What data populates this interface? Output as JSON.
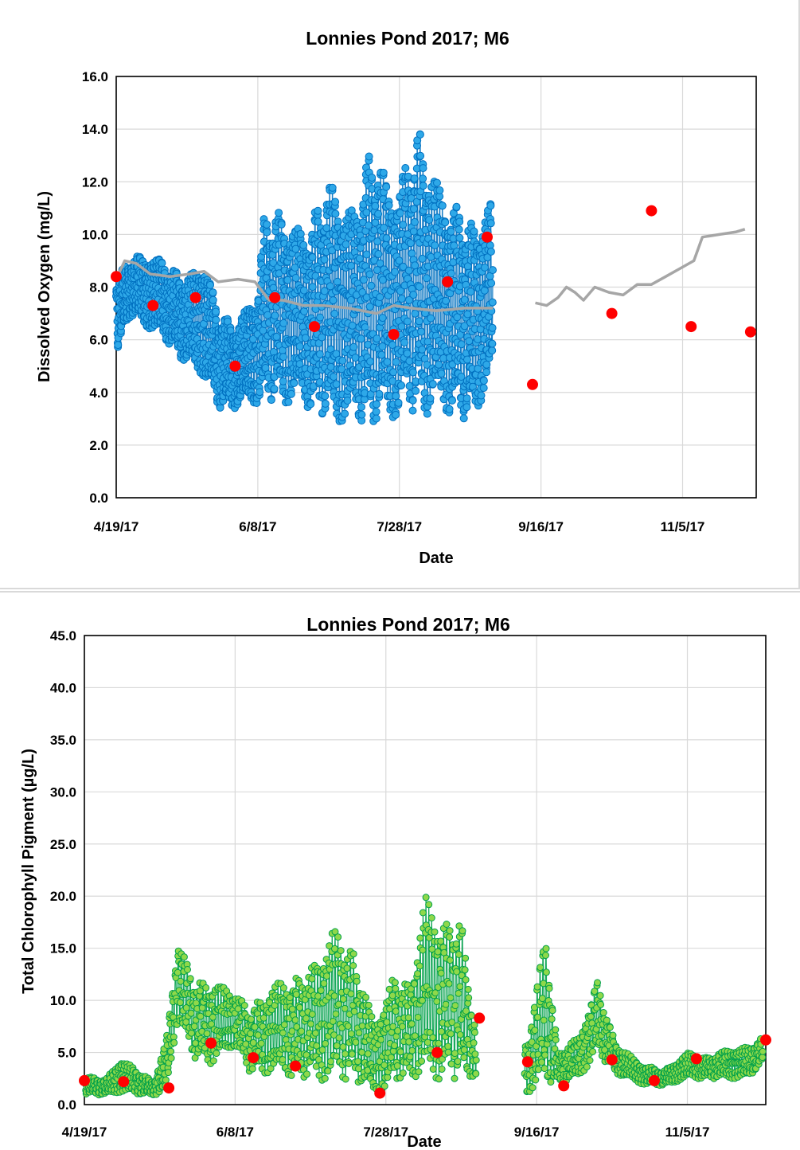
{
  "chart_data": [
    {
      "type": "scatter",
      "title": "Lonnies Pond 2017; M6",
      "xlabel": "Date",
      "ylabel": "Dissolved Oxygen (mg/L)",
      "xlim": [
        "2017-04-19",
        "2017-12-01"
      ],
      "ylim": [
        0,
        16
      ],
      "x_ticks": [
        "4/19/17",
        "6/8/17",
        "7/28/17",
        "9/16/17",
        "11/5/17"
      ],
      "y_ticks": [
        "0.0",
        "2.0",
        "4.0",
        "6.0",
        "8.0",
        "10.0",
        "12.0",
        "14.0",
        "16.0"
      ],
      "grid": true,
      "series": [
        {
          "color": "#0070c0",
          "fill": "#2ea8e8",
          "style": "continuous-sonde",
          "date_range": [
            "2017-04-19",
            "2017-08-30"
          ],
          "envelope": [
            {
              "x": "2017-04-19",
              "min": 5.5,
              "max": 8.4
            },
            {
              "x": "2017-04-24",
              "min": 6.9,
              "max": 9.1
            },
            {
              "x": "2017-05-01",
              "min": 6.4,
              "max": 9.3
            },
            {
              "x": "2017-05-08",
              "min": 5.8,
              "max": 8.8
            },
            {
              "x": "2017-05-14",
              "min": 5.0,
              "max": 8.3
            },
            {
              "x": "2017-05-20",
              "min": 4.6,
              "max": 9.2
            },
            {
              "x": "2017-05-25",
              "min": 3.4,
              "max": 7.0
            },
            {
              "x": "2017-06-01",
              "min": 3.4,
              "max": 6.6
            },
            {
              "x": "2017-06-08",
              "min": 3.6,
              "max": 8.0
            },
            {
              "x": "2017-06-10",
              "min": 3.7,
              "max": 10.6
            },
            {
              "x": "2017-06-17",
              "min": 3.6,
              "max": 10.9
            },
            {
              "x": "2017-06-24",
              "min": 3.5,
              "max": 10.0
            },
            {
              "x": "2017-07-01",
              "min": 3.1,
              "max": 11.5
            },
            {
              "x": "2017-07-05",
              "min": 2.8,
              "max": 12.1
            },
            {
              "x": "2017-07-12",
              "min": 2.9,
              "max": 10.8
            },
            {
              "x": "2017-07-18",
              "min": 2.8,
              "max": 13.5
            },
            {
              "x": "2017-07-24",
              "min": 2.8,
              "max": 12.0
            },
            {
              "x": "2017-07-30",
              "min": 3.4,
              "max": 12.5
            },
            {
              "x": "2017-08-04",
              "min": 3.2,
              "max": 14.1
            },
            {
              "x": "2017-08-10",
              "min": 3.1,
              "max": 12.0
            },
            {
              "x": "2017-08-16",
              "min": 3.2,
              "max": 11.3
            },
            {
              "x": "2017-08-22",
              "min": 2.9,
              "max": 10.4
            },
            {
              "x": "2017-08-30",
              "min": 4.4,
              "max": 11.3
            }
          ]
        },
        {
          "color": "#a6a6a6",
          "style": "line",
          "segments": [
            [
              {
                "x": "2017-04-19",
                "y": 8.3
              },
              {
                "x": "2017-04-22",
                "y": 9.0
              },
              {
                "x": "2017-04-26",
                "y": 8.9
              },
              {
                "x": "2017-05-01",
                "y": 8.5
              },
              {
                "x": "2017-05-08",
                "y": 8.4
              },
              {
                "x": "2017-05-15",
                "y": 8.5
              },
              {
                "x": "2017-05-20",
                "y": 8.6
              },
              {
                "x": "2017-05-25",
                "y": 8.2
              },
              {
                "x": "2017-06-01",
                "y": 8.3
              },
              {
                "x": "2017-06-07",
                "y": 8.2
              },
              {
                "x": "2017-06-12",
                "y": 7.5
              },
              {
                "x": "2017-06-17",
                "y": 7.5
              },
              {
                "x": "2017-06-24",
                "y": 7.3
              },
              {
                "x": "2017-07-01",
                "y": 7.3
              },
              {
                "x": "2017-07-10",
                "y": 7.2
              },
              {
                "x": "2017-07-20",
                "y": 7.0
              },
              {
                "x": "2017-07-26",
                "y": 7.3
              },
              {
                "x": "2017-08-01",
                "y": 7.2
              },
              {
                "x": "2017-08-10",
                "y": 7.1
              },
              {
                "x": "2017-08-20",
                "y": 7.2
              },
              {
                "x": "2017-08-30",
                "y": 7.2
              }
            ],
            [
              {
                "x": "2017-09-14",
                "y": 7.4
              },
              {
                "x": "2017-09-18",
                "y": 7.3
              },
              {
                "x": "2017-09-22",
                "y": 7.6
              },
              {
                "x": "2017-09-25",
                "y": 8.0
              },
              {
                "x": "2017-09-28",
                "y": 7.8
              },
              {
                "x": "2017-10-01",
                "y": 7.5
              },
              {
                "x": "2017-10-05",
                "y": 8.0
              },
              {
                "x": "2017-10-10",
                "y": 7.8
              },
              {
                "x": "2017-10-15",
                "y": 7.7
              },
              {
                "x": "2017-10-20",
                "y": 8.1
              },
              {
                "x": "2017-10-25",
                "y": 8.1
              },
              {
                "x": "2017-10-30",
                "y": 8.4
              },
              {
                "x": "2017-11-04",
                "y": 8.7
              },
              {
                "x": "2017-11-09",
                "y": 9.0
              },
              {
                "x": "2017-11-12",
                "y": 9.9
              },
              {
                "x": "2017-11-18",
                "y": 10.0
              },
              {
                "x": "2017-11-24",
                "y": 10.1
              },
              {
                "x": "2017-11-27",
                "y": 10.2
              }
            ]
          ]
        },
        {
          "color": "#ff0000",
          "style": "markers",
          "points": [
            {
              "x": "2017-04-19",
              "y": 8.4
            },
            {
              "x": "2017-05-02",
              "y": 7.3
            },
            {
              "x": "2017-05-17",
              "y": 7.6
            },
            {
              "x": "2017-05-31",
              "y": 5.0
            },
            {
              "x": "2017-06-14",
              "y": 7.6
            },
            {
              "x": "2017-06-28",
              "y": 6.5
            },
            {
              "x": "2017-07-26",
              "y": 6.2
            },
            {
              "x": "2017-08-14",
              "y": 8.2
            },
            {
              "x": "2017-08-28",
              "y": 9.9
            },
            {
              "x": "2017-09-13",
              "y": 4.3
            },
            {
              "x": "2017-10-11",
              "y": 7.0
            },
            {
              "x": "2017-10-25",
              "y": 10.9
            },
            {
              "x": "2017-11-08",
              "y": 6.5
            },
            {
              "x": "2017-11-29",
              "y": 6.3
            }
          ]
        }
      ]
    },
    {
      "type": "scatter",
      "title": "Lonnies Pond 2017; M6",
      "xlabel": "Date",
      "ylabel": "Total Chlorophyll Pigment (µg/L)",
      "xlim": [
        "2017-04-19",
        "2017-12-01"
      ],
      "ylim": [
        0,
        45
      ],
      "x_ticks": [
        "4/19/17",
        "6/8/17",
        "7/28/17",
        "9/16/17",
        "11/5/17"
      ],
      "y_ticks": [
        "0.0",
        "5.0",
        "10.0",
        "15.0",
        "20.0",
        "25.0",
        "30.0",
        "35.0",
        "40.0",
        "45.0"
      ],
      "grid": true,
      "series": [
        {
          "color": "#00a04a",
          "fill": "#8fd84a",
          "style": "continuous-sonde",
          "date_range": [
            "2017-04-19",
            "2017-11-30"
          ],
          "envelope": [
            {
              "x": "2017-04-19",
              "min": 1.0,
              "max": 2.8
            },
            {
              "x": "2017-04-26",
              "min": 0.9,
              "max": 2.4
            },
            {
              "x": "2017-05-01",
              "min": 1.2,
              "max": 4.5
            },
            {
              "x": "2017-05-06",
              "min": 1.0,
              "max": 3.4
            },
            {
              "x": "2017-05-12",
              "min": 0.9,
              "max": 2.2
            },
            {
              "x": "2017-05-16",
              "min": 1.0,
              "max": 6.0
            },
            {
              "x": "2017-05-20",
              "min": 8.0,
              "max": 16.2
            },
            {
              "x": "2017-05-25",
              "min": 4.5,
              "max": 12.0
            },
            {
              "x": "2017-06-01",
              "min": 3.8,
              "max": 11.8
            },
            {
              "x": "2017-06-08",
              "min": 5.5,
              "max": 11.0
            },
            {
              "x": "2017-06-13",
              "min": 3.0,
              "max": 9.0
            },
            {
              "x": "2017-06-20",
              "min": 3.0,
              "max": 11.5
            },
            {
              "x": "2017-06-27",
              "min": 2.5,
              "max": 12.0
            },
            {
              "x": "2017-07-03",
              "min": 2.5,
              "max": 13.0
            },
            {
              "x": "2017-07-10",
              "min": 2.0,
              "max": 17.0
            },
            {
              "x": "2017-07-17",
              "min": 2.5,
              "max": 15.0
            },
            {
              "x": "2017-07-24",
              "min": 0.8,
              "max": 8.0
            },
            {
              "x": "2017-07-31",
              "min": 2.0,
              "max": 12.5
            },
            {
              "x": "2017-08-05",
              "min": 2.5,
              "max": 11.5
            },
            {
              "x": "2017-08-10",
              "min": 2.0,
              "max": 20.0
            },
            {
              "x": "2017-08-17",
              "min": 2.5,
              "max": 17.5
            },
            {
              "x": "2017-08-22",
              "min": 2.5,
              "max": 18.0
            },
            {
              "x": "2017-08-26",
              "min": 2.5,
              "max": 8.5
            },
            {
              "x": "2017-09-13",
              "min": 1.0,
              "max": 6.3
            },
            {
              "x": "2017-09-19",
              "min": 2.0,
              "max": 16.9
            },
            {
              "x": "2017-09-23",
              "min": 2.0,
              "max": 5.0
            },
            {
              "x": "2017-09-30",
              "min": 2.5,
              "max": 6.5
            },
            {
              "x": "2017-10-06",
              "min": 5.0,
              "max": 12.0
            },
            {
              "x": "2017-10-12",
              "min": 3.0,
              "max": 6.0
            },
            {
              "x": "2017-10-20",
              "min": 2.0,
              "max": 4.0
            },
            {
              "x": "2017-10-28",
              "min": 1.8,
              "max": 3.2
            },
            {
              "x": "2017-11-05",
              "min": 2.5,
              "max": 5.0
            },
            {
              "x": "2017-11-12",
              "min": 2.5,
              "max": 4.5
            },
            {
              "x": "2017-11-19",
              "min": 2.5,
              "max": 5.5
            },
            {
              "x": "2017-11-25",
              "min": 2.5,
              "max": 5.5
            },
            {
              "x": "2017-11-30",
              "min": 4.0,
              "max": 6.5
            }
          ]
        },
        {
          "color": "#ff0000",
          "style": "markers",
          "points": [
            {
              "x": "2017-04-19",
              "y": 2.3
            },
            {
              "x": "2017-05-02",
              "y": 2.2
            },
            {
              "x": "2017-05-17",
              "y": 1.6
            },
            {
              "x": "2017-05-31",
              "y": 5.9
            },
            {
              "x": "2017-06-14",
              "y": 4.5
            },
            {
              "x": "2017-06-28",
              "y": 3.7
            },
            {
              "x": "2017-07-26",
              "y": 1.1
            },
            {
              "x": "2017-08-14",
              "y": 5.0
            },
            {
              "x": "2017-08-28",
              "y": 8.3
            },
            {
              "x": "2017-09-13",
              "y": 4.1
            },
            {
              "x": "2017-09-25",
              "y": 1.8
            },
            {
              "x": "2017-10-11",
              "y": 4.3
            },
            {
              "x": "2017-10-25",
              "y": 2.3
            },
            {
              "x": "2017-11-08",
              "y": 4.4
            },
            {
              "x": "2017-12-01",
              "y": 6.2
            }
          ]
        }
      ]
    }
  ]
}
